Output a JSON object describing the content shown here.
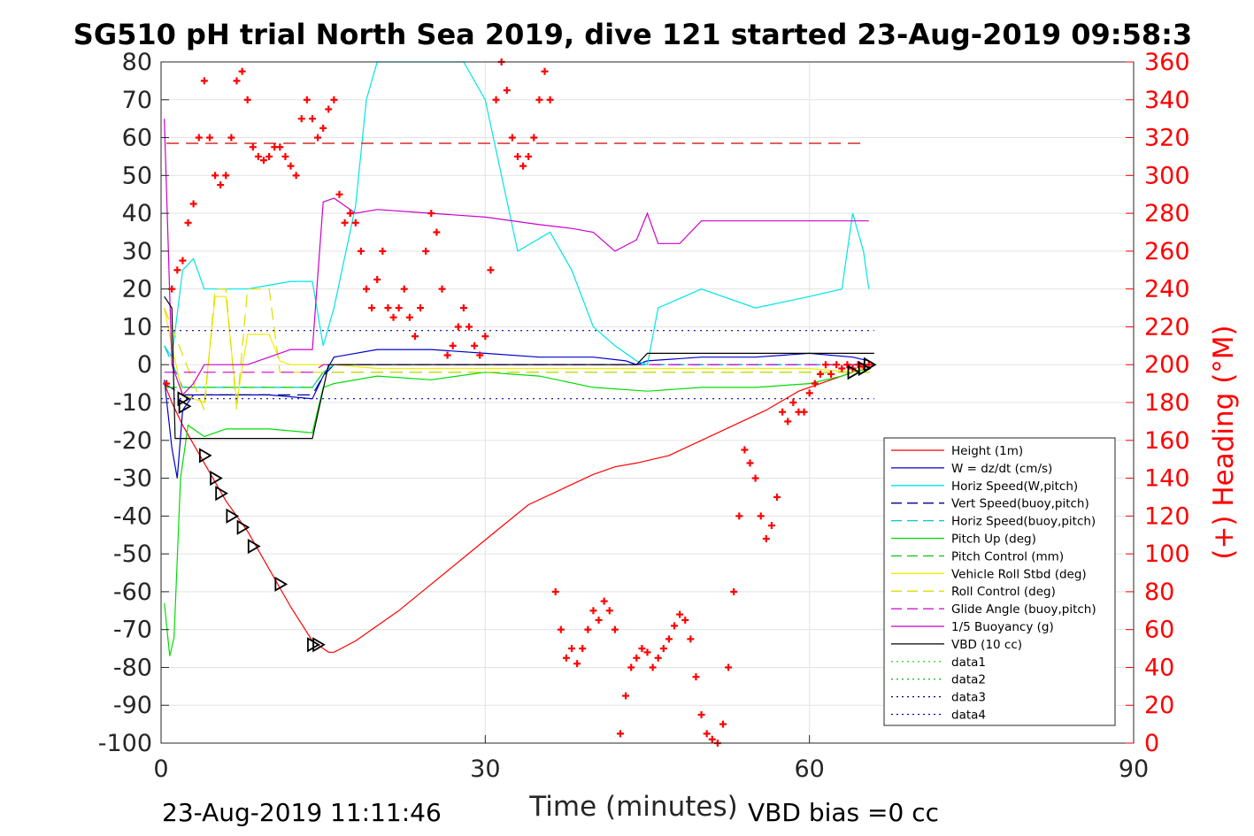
{
  "chart_data": {
    "type": "line",
    "title": "SG510 pH trial North Sea 2019, dive 121 started 23-Aug-2019 09:58:3",
    "xlabel": "Time (minutes)",
    "ylabel": "",
    "ylabel_right": "(+) Heading (°M)",
    "xlim": [
      0,
      90
    ],
    "ylim": [
      -100,
      80
    ],
    "ylim_right": [
      0,
      360
    ],
    "x_ticks": [
      "0",
      "30",
      "60",
      "90"
    ],
    "y_ticks": [
      "80",
      "70",
      "60",
      "50",
      "40",
      "30",
      "20",
      "10",
      "0",
      "-10",
      "-20",
      "-30",
      "-40",
      "-50",
      "-60",
      "-70",
      "-80",
      "-90",
      "-100"
    ],
    "y_ticks_right": [
      "360",
      "340",
      "320",
      "300",
      "280",
      "260",
      "240",
      "220",
      "200",
      "180",
      "160",
      "140",
      "120",
      "100",
      "80",
      "60",
      "40",
      "20",
      "0"
    ],
    "grid": true,
    "legend_position": "lower-right",
    "footer_left": "23-Aug-2019 11:11:46",
    "footer_right": "VBD bias =0 cc",
    "series": [
      {
        "name": "Height (1m)",
        "color": "#ff0000",
        "style": "solid",
        "x": [
          0.3,
          1,
          2,
          4,
          6,
          8,
          10,
          12,
          14,
          15.5,
          16,
          18,
          20,
          22,
          25,
          28,
          31,
          34,
          37,
          40,
          42,
          44,
          45.5,
          47,
          50,
          53,
          56,
          59,
          62,
          64,
          65.5
        ],
        "y": [
          -5,
          -10,
          -16,
          -26,
          -36,
          -44,
          -54,
          -64,
          -73,
          -76,
          -76,
          -73,
          -69,
          -65,
          -58,
          -51,
          -44,
          -37,
          -33,
          -29,
          -27,
          -26,
          -25,
          -24,
          -20,
          -16,
          -12,
          -7,
          -4,
          -2,
          0
        ]
      },
      {
        "name": "W = dz/dt (cm/s)",
        "color": "#0000cc",
        "style": "solid",
        "x": [
          0.3,
          1,
          1.5,
          2,
          3,
          6,
          10,
          14,
          15,
          16,
          20,
          25,
          30,
          35,
          40,
          43,
          44,
          45,
          50,
          55,
          60,
          64,
          65.5
        ],
        "y": [
          -4,
          -22,
          -30,
          -12,
          -8,
          -8,
          -8,
          -9,
          -3,
          2,
          4,
          4,
          3,
          2,
          2,
          1,
          0,
          1,
          2,
          2,
          3,
          2,
          1
        ]
      },
      {
        "name": "Horiz Speed(W,pitch)",
        "color": "#00e5e5",
        "style": "solid",
        "x": [
          0.3,
          1,
          2,
          3,
          4,
          5,
          8,
          10,
          12,
          14,
          15,
          16,
          18,
          19,
          20,
          22,
          25,
          28,
          30,
          33,
          36,
          38,
          40,
          42,
          44,
          45,
          46,
          50,
          55,
          60,
          63,
          64,
          65,
          65.5
        ],
        "y": [
          5,
          2,
          25,
          28,
          20,
          20,
          20,
          21,
          22,
          22,
          5,
          15,
          42,
          70,
          80,
          80,
          80,
          80,
          70,
          30,
          35,
          25,
          10,
          5,
          1,
          0,
          15,
          20,
          15,
          18,
          20,
          40,
          30,
          20
        ]
      },
      {
        "name": "Vert Speed(buoy,pitch)",
        "color": "#00008b",
        "style": "dash",
        "x": [
          0.3,
          2,
          14,
          15,
          16,
          66
        ],
        "y": [
          -5,
          -8,
          -8,
          -3,
          0,
          0
        ]
      },
      {
        "name": "Horiz Speed(buoy,pitch)",
        "color": "#00c8c8",
        "style": "dash",
        "x": [
          0.3,
          2,
          14,
          15,
          16,
          66
        ],
        "y": [
          5,
          -6,
          -6,
          -2,
          0,
          0
        ]
      },
      {
        "name": "Pitch Up (deg)",
        "color": "#00dd00",
        "style": "solid",
        "x": [
          0.3,
          0.8,
          1.2,
          1.8,
          2.5,
          4,
          6,
          10,
          14,
          15,
          16,
          20,
          25,
          30,
          35,
          40,
          45,
          50,
          55,
          60,
          63,
          64,
          65.5
        ],
        "y": [
          -63,
          -77,
          -72,
          -30,
          -16,
          -19,
          -17,
          -17,
          -18,
          -6,
          -5,
          -3,
          -4,
          -2,
          -3,
          -6,
          -7,
          -6,
          -6,
          -5,
          -3,
          -2,
          -1
        ]
      },
      {
        "name": "Pitch Control (mm)",
        "color": "#00cc00",
        "style": "dash",
        "x": [
          0.3,
          2,
          14,
          15,
          16,
          66
        ],
        "y": [
          -6,
          -6,
          -6,
          -2,
          -2,
          -2
        ]
      },
      {
        "name": "Vehicle Roll Stbd (deg)",
        "color": "#eeee00",
        "style": "solid",
        "x": [
          0.3,
          1,
          2,
          4,
          5,
          6,
          7,
          8,
          9,
          10,
          11,
          12,
          14,
          16,
          20,
          30,
          40,
          50,
          60,
          64,
          65.5
        ],
        "y": [
          15,
          5,
          -8,
          -10,
          18,
          18,
          -10,
          8,
          8,
          8,
          1,
          0,
          0,
          0,
          -1,
          -1,
          -1,
          -1,
          -1,
          -2,
          0
        ]
      },
      {
        "name": "Roll Control (deg)",
        "color": "#dddd00",
        "style": "dash",
        "x": [
          0.3,
          4,
          5,
          6,
          7,
          8,
          9,
          10,
          11,
          12,
          66
        ],
        "y": [
          15,
          -12,
          20,
          20,
          -12,
          20,
          20,
          20,
          -2,
          -2,
          -2
        ]
      },
      {
        "name": "Glide Angle (buoy,pitch)",
        "color": "#cc00cc",
        "style": "dash",
        "x": [
          0.3,
          2,
          14,
          15,
          16,
          66
        ],
        "y": [
          -2,
          -2,
          -2,
          0,
          0,
          0
        ]
      },
      {
        "name": "1/5 Buoyancy (g)",
        "color": "#cc00cc",
        "style": "solid",
        "x": [
          0.3,
          1,
          2,
          3,
          4,
          8,
          10,
          12,
          14,
          15,
          16,
          18,
          20,
          25,
          30,
          35,
          38,
          40,
          42,
          44,
          45,
          46,
          48,
          50,
          55,
          60,
          64,
          65.5
        ],
        "y": [
          65,
          0,
          -8,
          -5,
          0,
          0,
          2,
          4,
          4,
          43,
          44,
          40,
          41,
          40,
          39,
          37,
          36,
          35,
          30,
          33,
          40,
          32,
          32,
          38,
          38,
          38,
          38,
          38
        ]
      },
      {
        "name": "VBD (10 cc)",
        "color": "#000000",
        "style": "solid",
        "x": [
          0.3,
          1,
          1.3,
          14,
          15.5,
          16,
          44,
          45,
          66
        ],
        "y": [
          18,
          15,
          -19.5,
          -19.5,
          0,
          0,
          0,
          3,
          3
        ]
      },
      {
        "name": "data1",
        "color": "#33dd33",
        "style": "dot",
        "x": [],
        "y": []
      },
      {
        "name": "data2",
        "color": "#22bb22",
        "style": "dot",
        "x": [],
        "y": []
      },
      {
        "name": "data3",
        "color": "#000099",
        "style": "dot",
        "x": [
          0,
          66
        ],
        "y": [
          9,
          9
        ]
      },
      {
        "name": "data4",
        "color": "#0000bb",
        "style": "dot",
        "x": [
          0,
          66
        ],
        "y": [
          -9,
          -9
        ]
      }
    ],
    "reference_line": {
      "color": "#cc0000",
      "style": "dash",
      "x": [
        0.5,
        65
      ],
      "y_right": 317
    },
    "heading": {
      "name": "(+) Heading",
      "color": "#ff0000",
      "marker": "+",
      "x": [
        0.5,
        1,
        1.5,
        2,
        2.5,
        3,
        3.5,
        4,
        4.5,
        5,
        5.5,
        6,
        6.5,
        7,
        7.5,
        8,
        8.5,
        9,
        9.5,
        10,
        10.5,
        11,
        11.5,
        12,
        12.5,
        13,
        13.5,
        14,
        14.5,
        15,
        15.5,
        16,
        16.5,
        17,
        17.5,
        18,
        18.5,
        19,
        19.5,
        20,
        20.5,
        21,
        21.5,
        22,
        22.5,
        23,
        23.5,
        24,
        24.5,
        25,
        25.5,
        26,
        26.5,
        27,
        27.5,
        28,
        28.5,
        29,
        29.5,
        30,
        30.5,
        31,
        31.5,
        32,
        32.5,
        33,
        33.5,
        34,
        34.5,
        35,
        35.5,
        36,
        36.5,
        37,
        37.5,
        38,
        38.5,
        39,
        39.5,
        40,
        40.5,
        41,
        41.5,
        42,
        42.5,
        43,
        43.5,
        44,
        44.5,
        45,
        45.5,
        46,
        46.5,
        47,
        47.5,
        48,
        48.5,
        49,
        49.5,
        50,
        50.5,
        51,
        51.5,
        52,
        52.5,
        53,
        53.5,
        54,
        54.5,
        55,
        55.5,
        56,
        56.5,
        57,
        57.5,
        58,
        58.5,
        59,
        59.5,
        60,
        60.5,
        61,
        61.5,
        62,
        62.5,
        63,
        63.5,
        64,
        64.5,
        65,
        65.5
      ],
      "y": [
        190,
        240,
        250,
        255,
        275,
        285,
        320,
        350,
        320,
        300,
        295,
        300,
        320,
        350,
        355,
        340,
        315,
        310,
        308,
        310,
        315,
        315,
        310,
        305,
        300,
        330,
        340,
        330,
        320,
        325,
        335,
        340,
        290,
        275,
        280,
        275,
        260,
        240,
        230,
        245,
        260,
        230,
        225,
        230,
        240,
        225,
        215,
        230,
        260,
        280,
        270,
        240,
        205,
        210,
        220,
        230,
        220,
        210,
        205,
        215,
        250,
        340,
        360,
        345,
        320,
        310,
        305,
        310,
        320,
        340,
        355,
        340,
        80,
        60,
        45,
        50,
        42,
        50,
        60,
        70,
        65,
        75,
        70,
        60,
        5,
        25,
        40,
        45,
        50,
        48,
        40,
        45,
        50,
        55,
        62,
        68,
        65,
        55,
        35,
        15,
        5,
        2,
        0,
        10,
        40,
        80,
        120,
        155,
        148,
        140,
        120,
        108,
        115,
        130,
        175,
        170,
        180,
        175,
        175,
        185,
        190,
        195,
        200,
        195,
        200,
        198,
        200,
        198,
        200,
        199,
        200
      ]
    },
    "black_triangles": {
      "x": [
        2,
        2.1,
        4,
        5,
        5.5,
        6.5,
        7.5,
        8.5,
        11,
        14,
        14.5,
        64,
        65,
        65.5
      ],
      "y": [
        -9,
        -11,
        -24,
        -30,
        -34,
        -40,
        -43,
        -48,
        -58,
        -74,
        -74,
        -2,
        -1,
        0
      ]
    }
  }
}
